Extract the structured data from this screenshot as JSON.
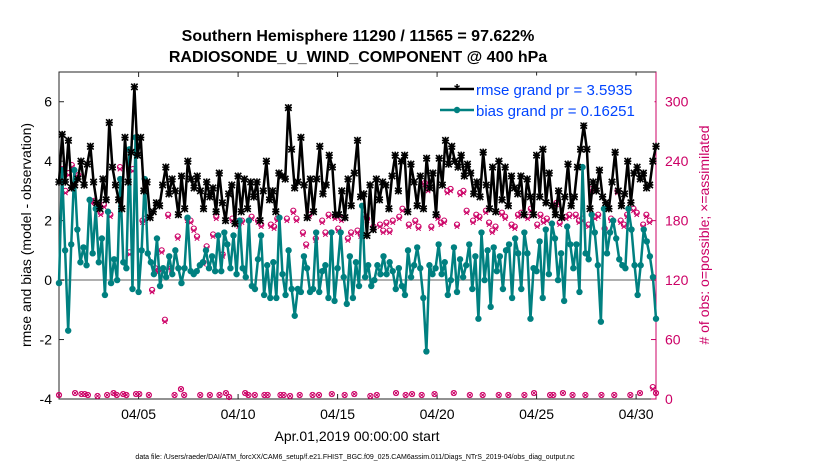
{
  "chart_data": {
    "type": "line",
    "title_line1": "Southern Hemisphere 11290 / 11565 = 97.622%",
    "title_line2": "RADIOSONDE_U_WIND_COMPONENT @ 400 hPa",
    "xlabel": "Apr.01,2019 00:00:00 start",
    "ylabel_left": "rmse and bias (model - observation)",
    "ylabel_right": "# of obs: o=possible; ×=assimilated",
    "footer": "data file: /Users/raeder/DAI/ATM_forcXX/CAM6_setup/f.e21.FHIST_BGC.f09_025.CAM6assim.011/Diags_NTrS_2019-04/obs_diag_output.nc",
    "x_range_days": [
      1.0,
      31.0
    ],
    "x_ticks": [
      {
        "day": 5,
        "label": "04/05"
      },
      {
        "day": 10,
        "label": "04/10"
      },
      {
        "day": 15,
        "label": "04/15"
      },
      {
        "day": 20,
        "label": "04/20"
      },
      {
        "day": 25,
        "label": "04/25"
      },
      {
        "day": 30,
        "label": "04/30"
      }
    ],
    "y_left_range": [
      -4,
      7
    ],
    "y_left_ticks": [
      -4,
      -2,
      0,
      2,
      4,
      6
    ],
    "y_right_range": [
      0,
      330
    ],
    "y_right_ticks": [
      0,
      60,
      120,
      180,
      240,
      300
    ],
    "legend_position": "top-right",
    "colors": {
      "rmse": "#000000",
      "bias": "#008080",
      "obs": "#cc0066",
      "zero_line": "#b0b0b0",
      "legend_text": "#0044ff"
    },
    "series": [
      {
        "name": "rmse grand pr = 3.5935",
        "axis": "left",
        "style": "line-asterisk",
        "values": [
          3.3,
          4.9,
          3.3,
          4.7,
          3.1,
          3.2,
          3.4,
          4.0,
          3.2,
          3.9,
          4.5,
          3.3,
          2.6,
          2.4,
          3.4,
          2.7,
          5.3,
          3.8,
          3.2,
          2.7,
          2.4,
          4.8,
          3.3,
          4.3,
          6.5,
          4.2,
          4.8,
          3.0,
          3.3,
          2.1,
          2.3,
          2.6,
          2.5,
          3.2,
          3.8,
          2.9,
          3.4,
          3.0,
          2.2,
          3.5,
          2.4,
          4.0,
          3.4,
          3.1,
          3.5,
          3.0,
          2.4,
          3.3,
          2.8,
          3.1,
          2.3,
          3.6,
          2.6,
          2.0,
          2.9,
          3.2,
          1.9,
          3.5,
          2.3,
          3.4,
          2.4,
          3.3,
          2.8,
          3.3,
          2.0,
          3.0,
          4.0,
          2.7,
          3.0,
          2.3,
          3.6,
          3.5,
          3.4,
          5.8,
          4.4,
          3.1,
          3.3,
          4.8,
          3.2,
          2.1,
          3.4,
          2.3,
          3.4,
          4.5,
          2.9,
          3.2,
          4.2,
          3.8,
          2.2,
          2.2,
          3.0,
          2.1,
          3.4,
          2.5,
          3.6,
          4.7,
          2.8,
          2.9,
          1.5,
          3.2,
          1.7,
          3.4,
          2.7,
          3.3,
          3.2,
          2.4,
          3.5,
          4.2,
          3.0,
          4.0,
          4.2,
          2.3,
          3.9,
          3.3,
          2.5,
          3.5,
          2.4,
          4.1,
          3.1,
          3.6,
          2.2,
          4.1,
          3.2,
          4.7,
          3.9,
          4.5,
          4.0,
          3.8,
          4.2,
          3.5,
          3.9,
          3.6,
          2.9,
          3.3,
          2.8,
          4.3,
          3.2,
          2.4,
          3.8,
          2.3,
          4.0,
          2.7,
          3.8,
          2.5,
          3.5,
          3.1,
          2.9,
          3.5,
          2.2,
          3.4,
          2.8,
          2.2,
          4.2,
          2.8,
          4.4,
          2.6,
          3.6,
          2.5,
          2.2,
          3.0,
          2.1,
          2.8,
          3.9,
          2.5,
          2.8,
          3.8,
          4.4,
          5.2,
          4.4,
          2.4,
          3.3,
          3.0,
          3.7,
          2.8,
          2.6,
          2.4,
          3.3,
          4.3,
          3.0,
          2.5,
          2.9,
          4.0,
          2.6,
          3.6,
          3.8,
          3.4,
          3.6,
          3.1,
          3.2,
          4.0,
          4.5
        ]
      },
      {
        "name": "bias grand pr = 0.16251",
        "axis": "left",
        "style": "line-dot",
        "values": [
          -0.1,
          3.7,
          1.0,
          -1.7,
          1.2,
          3.7,
          1.7,
          0.6,
          1.1,
          0.5,
          2.7,
          0.9,
          2.4,
          0.6,
          1.4,
          -0.5,
          2.3,
          -0.1,
          0.7,
          0.0,
          3.4,
          0.6,
          0.4,
          4.4,
          -0.3,
          4.8,
          -0.4,
          1.0,
          3.4,
          0.9,
          0.6,
          0.2,
          1.4,
          -0.2,
          0.4,
          0.1,
          0.8,
          0.2,
          1.0,
          0.4,
          -0.1,
          0.4,
          2.1,
          0.3,
          0.2,
          0.3,
          0.5,
          0.6,
          1.0,
          0.4,
          0.8,
          0.3,
          1.5,
          0.3,
          1.6,
          1.2,
          0.4,
          1.5,
          0.2,
          2.0,
          0.4,
          0.1,
          2.0,
          -0.2,
          -0.3,
          0.7,
          1.5,
          -0.5,
          0.5,
          -0.6,
          0.6,
          -0.6,
          2.1,
          0.2,
          -0.5,
          1.0,
          -0.3,
          -1.2,
          -0.3,
          -0.4,
          0.8,
          0.4,
          -0.4,
          -0.3,
          1.6,
          -0.4,
          0.3,
          0.5,
          -0.6,
          1.6,
          -0.7,
          0.4,
          1.6,
          0.1,
          -0.8,
          0.8,
          -0.6,
          0.6,
          -0.2,
          2.5,
          0.1,
          0.5,
          -0.2,
          0.0,
          0.5,
          0.2,
          0.8,
          0.2,
          0.6,
          0.3,
          -0.3,
          0.4,
          -0.2,
          -0.5,
          1.0,
          0.1,
          0.5,
          1.1,
          0.4,
          -0.6,
          -2.4,
          0.5,
          0.2,
          0.4,
          1.2,
          0.2,
          0.6,
          -0.5,
          0.0,
          1.1,
          -0.4,
          0.7,
          0.1,
          0.5,
          1.2,
          -0.3,
          0.8,
          -1.3,
          1.6,
          0.0,
          1.0,
          -0.9,
          1.1,
          0.3,
          0.8,
          -0.3,
          1.0,
          1.2,
          -0.6,
          1.4,
          0.9,
          -0.3,
          1.6,
          0.9,
          -1.3,
          0.4,
          0.3,
          1.3,
          -0.6,
          1.7,
          0.2,
          1.9,
          1.4,
          0.0,
          0.9,
          -0.7,
          1.8,
          1.2,
          0.4,
          1.2,
          -0.4,
          3.8,
          0.9,
          0.7,
          2.2,
          1.6,
          0.5,
          -1.4,
          2.4,
          0.9,
          1.6,
          2.0,
          1.4,
          0.7,
          0.5,
          0.4,
          2.4,
          1.7,
          0.5,
          -0.5,
          0.5,
          1.7,
          1.3,
          0.8,
          0.1,
          -1.3
        ]
      },
      {
        "name": "# of obs possible",
        "axis": "right",
        "style": "circle",
        "values": [
          4,
          232,
          210,
          228,
          236,
          6,
          226,
          5,
          5,
          4,
          200,
          200,
          3,
          188,
          196,
          4,
          186,
          6,
          4,
          234,
          5,
          4,
          148,
          232,
          5,
          5,
          180,
          182,
          4,
          110,
          132,
          130,
          150,
          80,
          186,
          132,
          4,
          164,
          10,
          4,
          182,
          180,
          172,
          164,
          4,
          138,
          154,
          4,
          166,
          184,
          4,
          146,
          6,
          2,
          182,
          180,
          176,
          180,
          6,
          4,
          184,
          4,
          180,
          176,
          4,
          4,
          176,
          174,
          182,
          4,
          4,
          182,
          3,
          190,
          182,
          4,
          168,
          156,
          186,
          4,
          162,
          4,
          180,
          168,
          186,
          5,
          184,
          172,
          182,
          4,
          162,
          168,
          5,
          170,
          166,
          186,
          182,
          3,
          174,
          4,
          176,
          170,
          178,
          170,
          180,
          6,
          184,
          192,
          4,
          176,
          5,
          180,
          174,
          4,
          218,
          212,
          174,
          5,
          184,
          178,
          180,
          210,
          212,
          6,
          176,
          208,
          210,
          190,
          4,
          180,
          186,
          184,
          4,
          190,
          178,
          170,
          174,
          4,
          188,
          184,
          4,
          176,
          174,
          186,
          188,
          4,
          184,
          192,
          6,
          176,
          186,
          180,
          182,
          4,
          4,
          198,
          178,
          6,
          184,
          186,
          4,
          186,
          180,
          182,
          4,
          176,
          212,
          184,
          186,
          4,
          172,
          194,
          182,
          4,
          210,
          180,
          176,
          186,
          4,
          192,
          188,
          6,
          176,
          186,
          180,
          12,
          6
        ]
      },
      {
        "name": "# of obs assimilated",
        "axis": "right",
        "style": "x",
        "values": [
          4,
          230,
          208,
          226,
          234,
          6,
          224,
          5,
          5,
          4,
          198,
          198,
          3,
          186,
          194,
          4,
          184,
          6,
          4,
          232,
          5,
          4,
          146,
          230,
          5,
          5,
          178,
          180,
          4,
          108,
          130,
          128,
          148,
          78,
          184,
          130,
          4,
          162,
          10,
          4,
          180,
          178,
          170,
          162,
          4,
          136,
          152,
          4,
          164,
          182,
          4,
          144,
          6,
          2,
          180,
          178,
          174,
          178,
          6,
          4,
          182,
          4,
          178,
          174,
          4,
          4,
          174,
          172,
          180,
          4,
          4,
          180,
          3,
          188,
          180,
          4,
          166,
          154,
          184,
          4,
          160,
          4,
          178,
          166,
          184,
          5,
          182,
          170,
          180,
          4,
          160,
          166,
          5,
          168,
          164,
          184,
          180,
          3,
          172,
          4,
          174,
          168,
          176,
          168,
          178,
          6,
          182,
          190,
          4,
          174,
          5,
          178,
          172,
          4,
          216,
          210,
          172,
          5,
          182,
          176,
          178,
          208,
          210,
          6,
          174,
          206,
          208,
          188,
          4,
          178,
          184,
          182,
          4,
          188,
          176,
          168,
          172,
          4,
          186,
          182,
          4,
          174,
          172,
          184,
          186,
          4,
          182,
          190,
          6,
          174,
          184,
          178,
          180,
          4,
          4,
          196,
          176,
          6,
          182,
          184,
          4,
          184,
          178,
          180,
          4,
          174,
          210,
          182,
          184,
          4,
          170,
          192,
          180,
          4,
          208,
          178,
          174,
          184,
          4,
          190,
          186,
          6,
          174,
          184,
          178,
          10,
          6
        ]
      }
    ]
  }
}
